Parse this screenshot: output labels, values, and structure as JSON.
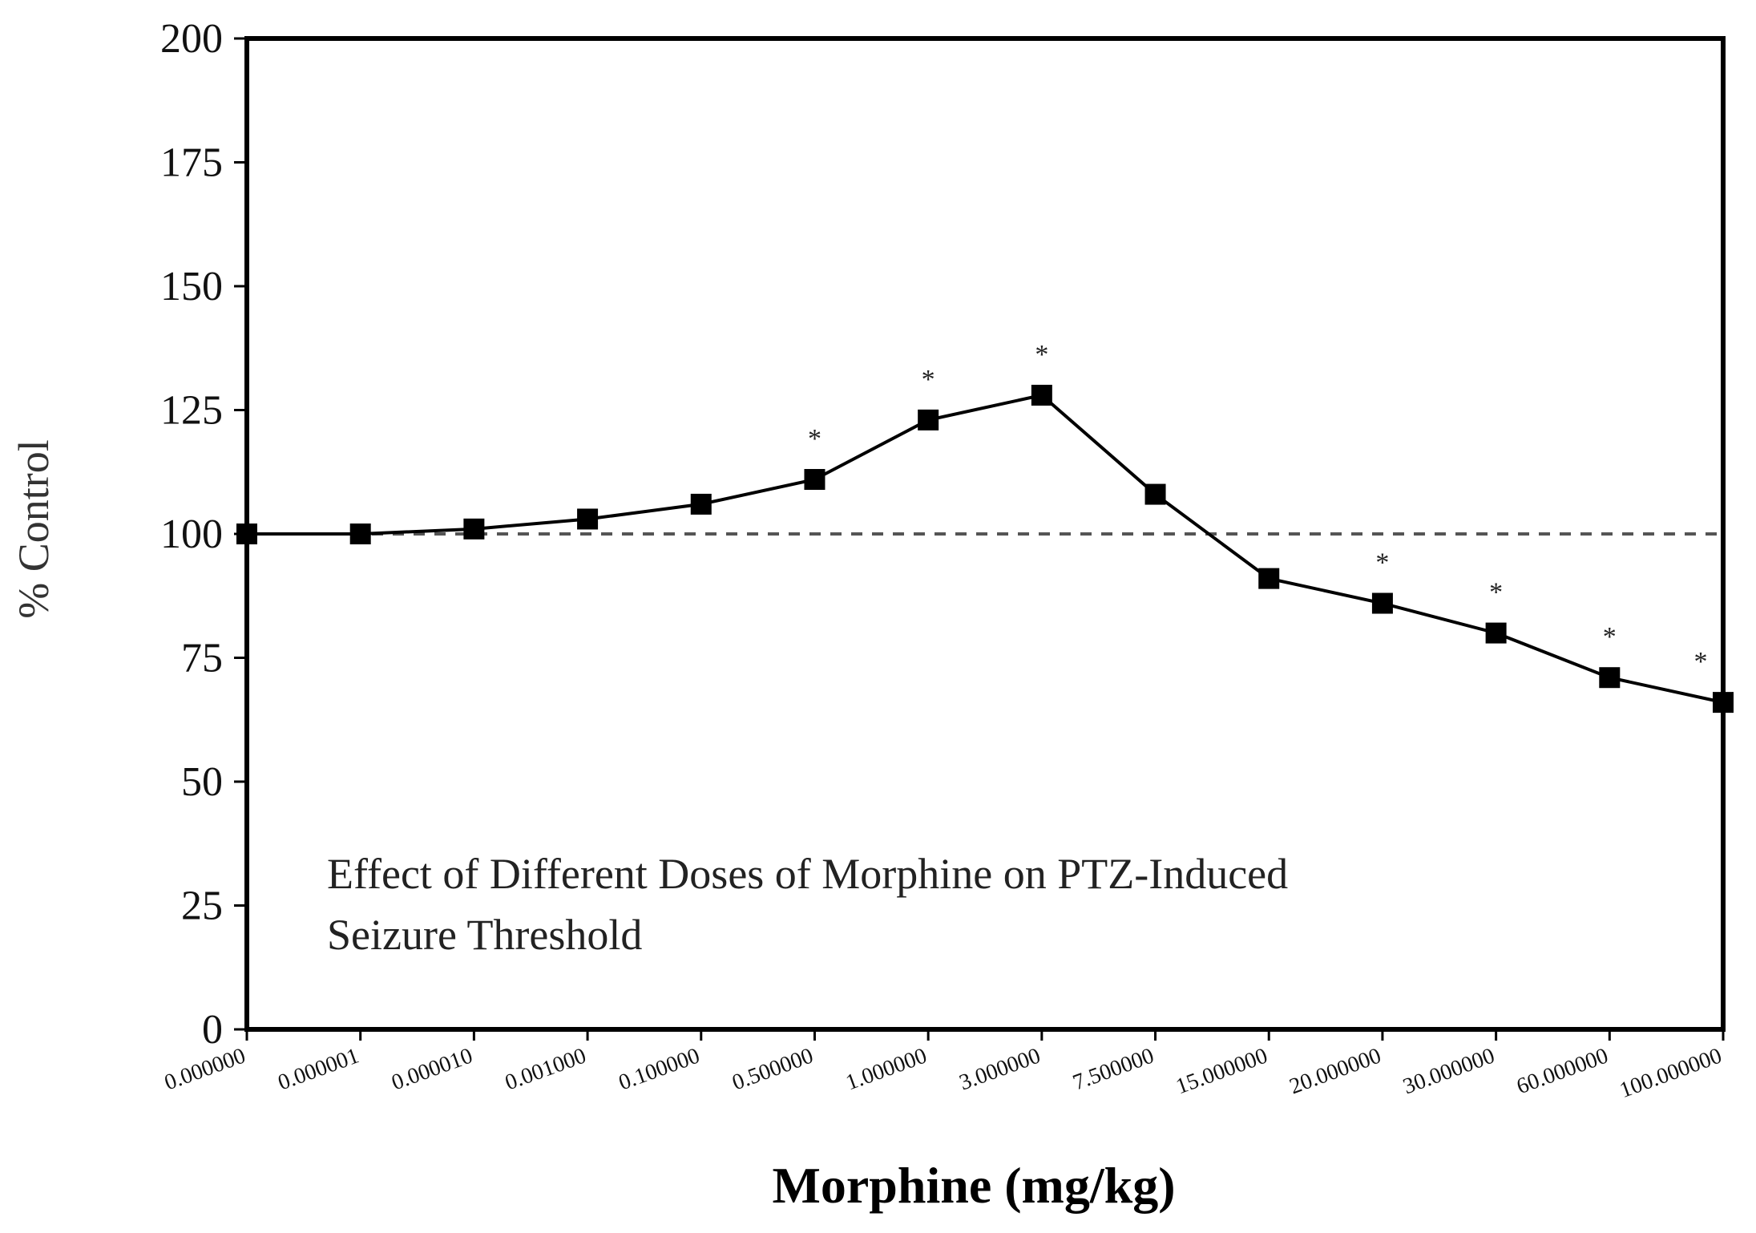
{
  "chart_data": {
    "type": "line",
    "title_lines": [
      "Effect of Different Doses of Morphine on PTZ-Induced",
      "Seizure Threshold"
    ],
    "xlabel": "Morphine (mg/kg)",
    "ylabel": "% Control",
    "ylim": [
      0,
      200
    ],
    "yticks": [
      "0",
      "25",
      "50",
      "75",
      "100",
      "125",
      "150",
      "175",
      "200"
    ],
    "ytick_values": [
      0,
      25,
      50,
      75,
      100,
      125,
      150,
      175,
      200
    ],
    "categories": [
      "0.000000",
      "0.000001",
      "0.000010",
      "0.001000",
      "0.100000",
      "0.500000",
      "1.000000",
      "3.000000",
      "7.500000",
      "15.000000",
      "20.000000",
      "30.000000",
      "60.000000",
      "100.000000"
    ],
    "series": [
      {
        "name": "Morphine",
        "values": [
          100,
          100,
          101,
          103,
          106,
          111,
          123,
          128,
          108,
          91,
          86,
          80,
          71,
          66
        ]
      }
    ],
    "reference_line": {
      "value": 100,
      "style": "dashed"
    },
    "significance_marker": "*",
    "significant": [
      false,
      false,
      false,
      false,
      false,
      true,
      true,
      true,
      false,
      false,
      true,
      true,
      true,
      true
    ],
    "legend": "none",
    "grid": false
  }
}
